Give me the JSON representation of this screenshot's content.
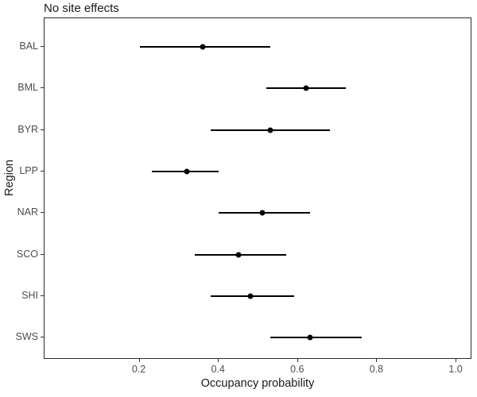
{
  "title": "No site effects",
  "axes": {
    "x": {
      "label": "Occupancy probability",
      "tick_labels": [
        "0.2",
        "0.4",
        "0.6",
        "0.8",
        "1.0"
      ],
      "tick_values": [
        0.2,
        0.4,
        0.6,
        0.8,
        1.0
      ],
      "range": [
        -0.04,
        1.04
      ]
    },
    "y": {
      "label": "Region",
      "tick_labels": [
        "BAL",
        "BML",
        "BYR",
        "LPP",
        "NAR",
        "SCO",
        "SHI",
        "SWS"
      ]
    }
  },
  "chart_data": {
    "type": "scatter",
    "subtype": "horizontal-pointrange",
    "title": "No site effects",
    "xlabel": "Occupancy probability",
    "ylabel": "Region",
    "xlim": [
      -0.04,
      1.04
    ],
    "x_ticks": [
      0.2,
      0.4,
      0.6,
      0.8,
      1.0
    ],
    "grid": false,
    "legend": false,
    "categories": [
      "BAL",
      "BML",
      "BYR",
      "LPP",
      "NAR",
      "SCO",
      "SHI",
      "SWS"
    ],
    "points": [
      {
        "region": "BAL",
        "estimate": 0.36,
        "lower": 0.2,
        "upper": 0.53
      },
      {
        "region": "BML",
        "estimate": 0.62,
        "lower": 0.52,
        "upper": 0.72
      },
      {
        "region": "BYR",
        "estimate": 0.53,
        "lower": 0.38,
        "upper": 0.68
      },
      {
        "region": "LPP",
        "estimate": 0.32,
        "lower": 0.23,
        "upper": 0.4
      },
      {
        "region": "NAR",
        "estimate": 0.51,
        "lower": 0.4,
        "upper": 0.63
      },
      {
        "region": "SCO",
        "estimate": 0.45,
        "lower": 0.34,
        "upper": 0.57
      },
      {
        "region": "SHI",
        "estimate": 0.48,
        "lower": 0.38,
        "upper": 0.59
      },
      {
        "region": "SWS",
        "estimate": 0.63,
        "lower": 0.53,
        "upper": 0.76
      }
    ]
  },
  "colors": {
    "point": "#000000",
    "line": "#000000",
    "panel_border": "#2b2b2b",
    "axis_text": "#4d4d4d",
    "title_text": "#1a1a1a",
    "background": "#ffffff"
  }
}
